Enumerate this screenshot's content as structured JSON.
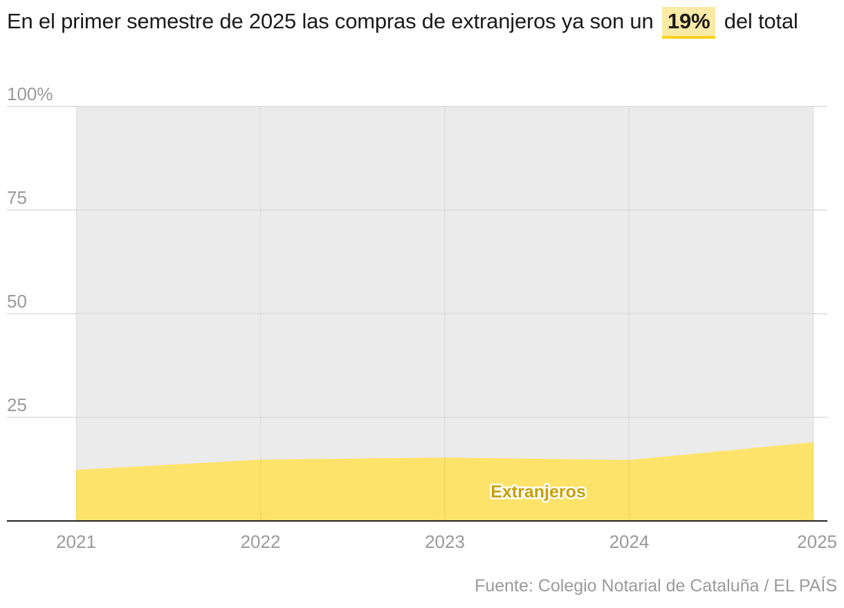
{
  "title": {
    "before": "En el primer semestre de 2025 las compras de extranjeros ya son un",
    "highlight": "19%",
    "after": "del total"
  },
  "source": "Fuente: Colegio Notarial de Cataluña / EL PAÍS",
  "colors": {
    "area_fill": "#fee36b",
    "plot_bg": "#ebebeb",
    "label_text": "#c8a000",
    "axis_text": "#9a9a9a",
    "highlight_bg": "#fbeaa5",
    "highlight_border": "#fcd21d"
  },
  "chart_data": {
    "type": "area",
    "title": "En el primer semestre de 2025 las compras de extranjeros ya son un 19% del total",
    "x": [
      2021,
      2022,
      2023,
      2024,
      2025
    ],
    "x_tick_labels": [
      "2021",
      "2022",
      "2023",
      "2024",
      "2025"
    ],
    "series": [
      {
        "name": "Extranjeros",
        "values": [
          12.3,
          14.8,
          15.3,
          14.7,
          19.0
        ]
      }
    ],
    "y_tick_labels": [
      "100%",
      "75",
      "50",
      "25"
    ],
    "y_ticks": [
      100,
      75,
      50,
      25
    ],
    "ylim": [
      0,
      100
    ],
    "xlabel": "",
    "ylabel": "",
    "grid": true
  }
}
